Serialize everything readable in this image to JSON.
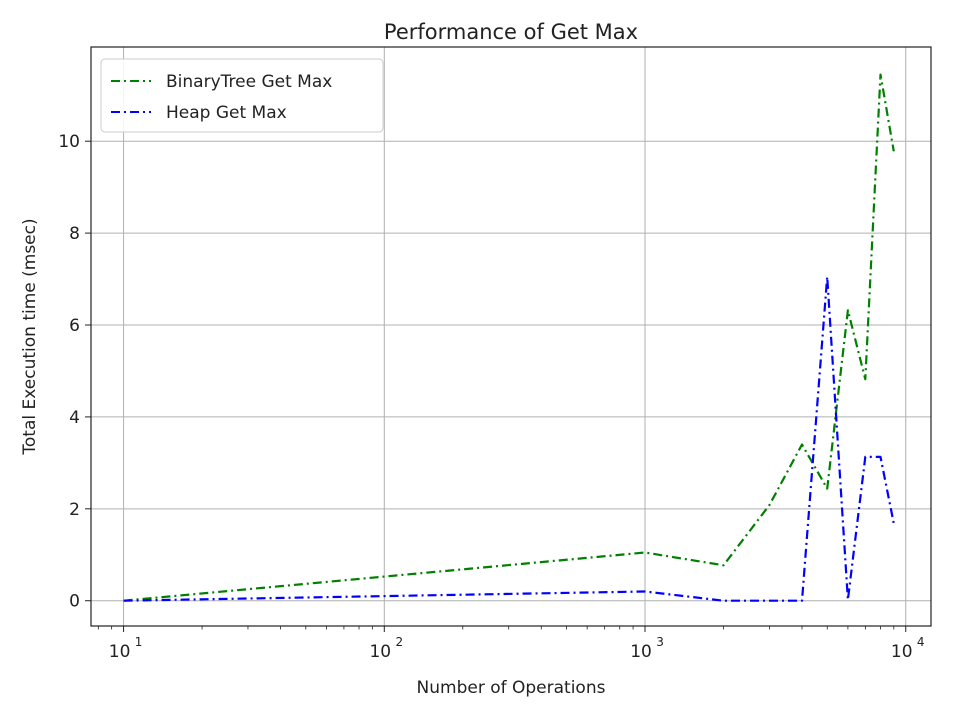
{
  "chart_data": {
    "type": "line",
    "title": "Performance of Get Max",
    "xlabel": "Number of Operations",
    "ylabel": "Total Execution time (msec)",
    "xscale": "log",
    "xlim": [
      7.5,
      12500
    ],
    "ylim": [
      -0.55,
      12.05
    ],
    "grid": true,
    "legend_position": "top-left",
    "x_ticks": [
      {
        "value": 10,
        "base": "10",
        "exp": "1"
      },
      {
        "value": 100,
        "base": "10",
        "exp": "2"
      },
      {
        "value": 1000,
        "base": "10",
        "exp": "3"
      },
      {
        "value": 10000,
        "base": "10",
        "exp": "4"
      }
    ],
    "y_ticks": [
      0,
      2,
      4,
      6,
      8,
      10
    ],
    "x": [
      10,
      1000,
      2000,
      3000,
      4000,
      5000,
      6000,
      7000,
      8000,
      9000
    ],
    "series": [
      {
        "name": "BinaryTree Get Max",
        "color": "#008000",
        "dash": "dashdot",
        "values": [
          0.0,
          1.05,
          0.77,
          2.08,
          3.4,
          2.44,
          6.32,
          4.82,
          11.45,
          9.78
        ]
      },
      {
        "name": "Heap Get Max",
        "color": "#0000ff",
        "dash": "dashdot",
        "values": [
          0.0,
          0.2,
          0.0,
          0.0,
          0.0,
          7.05,
          0.02,
          3.13,
          3.13,
          1.68
        ]
      }
    ]
  }
}
